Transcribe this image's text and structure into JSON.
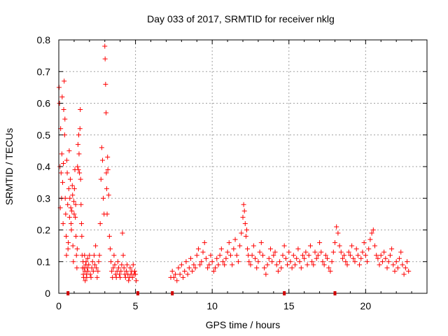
{
  "chart_data": {
    "type": "scatter",
    "title": "Day 033 of 2017, SRMTID for receiver nklg",
    "xlabel": "GPS time / hours",
    "ylabel": "SRMTID / TECUs",
    "xlim": [
      0,
      24
    ],
    "ylim": [
      0,
      0.8
    ],
    "xticks": [
      0,
      5,
      10,
      15,
      20
    ],
    "yticks": [
      0,
      0.1,
      0.2,
      0.3,
      0.4,
      0.5,
      0.6,
      0.7,
      0.8
    ],
    "xtick_labels": [
      "0",
      "5",
      "10",
      "15",
      "20"
    ],
    "ytick_labels": [
      "0",
      "0.1",
      "0.2",
      "0.3",
      "0.4",
      "0.5",
      "0.6",
      "0.7",
      "0.8"
    ],
    "grid": true,
    "marker": "+",
    "color": "#ff0000",
    "gap_markers_x": [
      0.6,
      5.15,
      7.4,
      14.7,
      18.0
    ],
    "series": [
      {
        "name": "SRMTID",
        "x": [
          0.02,
          0.05,
          0.08,
          0.1,
          0.12,
          0.15,
          0.18,
          0.2,
          0.22,
          0.25,
          0.28,
          0.3,
          0.32,
          0.35,
          0.38,
          0.4,
          0.42,
          0.45,
          0.48,
          0.5,
          0.52,
          0.55,
          0.58,
          0.6,
          0.62,
          0.65,
          0.68,
          0.7,
          0.72,
          0.75,
          0.78,
          0.8,
          0.82,
          0.85,
          0.88,
          0.9,
          0.92,
          0.95,
          0.98,
          1.0,
          1.02,
          1.05,
          1.08,
          1.1,
          1.12,
          1.15,
          1.18,
          1.2,
          1.22,
          1.25,
          1.28,
          1.3,
          1.32,
          1.35,
          1.38,
          1.4,
          1.42,
          1.45,
          1.48,
          1.5,
          1.52,
          1.55,
          1.58,
          1.6,
          1.62,
          1.65,
          1.68,
          1.7,
          1.72,
          1.75,
          1.78,
          1.8,
          1.82,
          1.85,
          1.88,
          1.9,
          1.95,
          2.0,
          2.05,
          2.1,
          2.15,
          2.2,
          2.25,
          2.3,
          2.35,
          2.4,
          2.45,
          2.5,
          2.55,
          2.6,
          2.65,
          2.7,
          2.75,
          2.8,
          2.85,
          2.9,
          2.95,
          3.0,
          3.02,
          3.05,
          3.08,
          3.1,
          3.12,
          3.15,
          3.18,
          3.2,
          3.25,
          3.3,
          3.35,
          3.4,
          3.45,
          3.5,
          3.55,
          3.6,
          3.65,
          3.7,
          3.75,
          3.8,
          3.85,
          3.9,
          3.95,
          4.0,
          4.05,
          4.1,
          4.15,
          4.2,
          4.25,
          4.3,
          4.35,
          4.4,
          4.45,
          4.5,
          4.55,
          4.6,
          4.65,
          4.7,
          4.75,
          4.8,
          4.85,
          4.9,
          4.95,
          5.0,
          5.05,
          7.3,
          7.4,
          7.5,
          7.6,
          7.7,
          7.8,
          7.9,
          8.0,
          8.1,
          8.2,
          8.3,
          8.4,
          8.5,
          8.6,
          8.7,
          8.8,
          8.9,
          9.0,
          9.1,
          9.2,
          9.3,
          9.4,
          9.5,
          9.6,
          9.7,
          9.8,
          9.9,
          10.0,
          10.1,
          10.2,
          10.3,
          10.4,
          10.5,
          10.6,
          10.7,
          10.8,
          10.9,
          11.0,
          11.1,
          11.2,
          11.3,
          11.4,
          11.5,
          11.6,
          11.7,
          11.8,
          11.9,
          12.0,
          12.05,
          12.1,
          12.15,
          12.2,
          12.25,
          12.3,
          12.35,
          12.4,
          12.5,
          12.6,
          12.7,
          12.8,
          12.9,
          13.0,
          13.1,
          13.2,
          13.3,
          13.4,
          13.5,
          13.6,
          13.7,
          13.8,
          13.9,
          14.0,
          14.1,
          14.2,
          14.3,
          14.4,
          14.5,
          14.6,
          14.7,
          14.8,
          14.9,
          15.0,
          15.1,
          15.2,
          15.3,
          15.4,
          15.5,
          15.6,
          15.7,
          15.8,
          15.9,
          16.0,
          16.1,
          16.2,
          16.3,
          16.4,
          16.5,
          16.6,
          16.7,
          16.8,
          16.9,
          17.0,
          17.1,
          17.2,
          17.3,
          17.4,
          17.5,
          17.6,
          17.7,
          17.8,
          17.9,
          18.0,
          18.1,
          18.2,
          18.3,
          18.4,
          18.5,
          18.6,
          18.7,
          18.8,
          18.9,
          19.0,
          19.1,
          19.2,
          19.3,
          19.4,
          19.5,
          19.6,
          19.7,
          19.8,
          19.9,
          20.0,
          20.1,
          20.2,
          20.3,
          20.4,
          20.5,
          20.6,
          20.7,
          20.8,
          20.9,
          21.0,
          21.1,
          21.2,
          21.3,
          21.4,
          21.5,
          21.6,
          21.7,
          21.8,
          21.9,
          22.0,
          22.1,
          22.2,
          22.3,
          22.4,
          22.5,
          22.6,
          22.7,
          22.8
        ],
        "y": [
          0.65,
          0.6,
          0.4,
          0.27,
          0.52,
          0.38,
          0.3,
          0.44,
          0.62,
          0.35,
          0.22,
          0.41,
          0.58,
          0.67,
          0.5,
          0.55,
          0.3,
          0.25,
          0.18,
          0.12,
          0.42,
          0.38,
          0.28,
          0.14,
          0.16,
          0.33,
          0.45,
          0.24,
          0.3,
          0.36,
          0.27,
          0.22,
          0.2,
          0.26,
          0.34,
          0.31,
          0.15,
          0.1,
          0.29,
          0.25,
          0.33,
          0.39,
          0.24,
          0.28,
          0.18,
          0.12,
          0.08,
          0.14,
          0.4,
          0.47,
          0.39,
          0.5,
          0.44,
          0.38,
          0.52,
          0.58,
          0.36,
          0.28,
          0.22,
          0.18,
          0.12,
          0.08,
          0.1,
          0.06,
          0.05,
          0.08,
          0.12,
          0.07,
          0.04,
          0.09,
          0.1,
          0.06,
          0.05,
          0.08,
          0.11,
          0.07,
          0.09,
          0.12,
          0.06,
          0.05,
          0.08,
          0.1,
          0.07,
          0.12,
          0.09,
          0.15,
          0.08,
          0.05,
          0.07,
          0.1,
          0.12,
          0.22,
          0.36,
          0.46,
          0.42,
          0.3,
          0.25,
          0.78,
          0.74,
          0.66,
          0.57,
          0.38,
          0.33,
          0.25,
          0.43,
          0.39,
          0.31,
          0.18,
          0.14,
          0.1,
          0.07,
          0.05,
          0.08,
          0.12,
          0.09,
          0.06,
          0.05,
          0.07,
          0.1,
          0.08,
          0.06,
          0.05,
          0.07,
          0.09,
          0.19,
          0.12,
          0.08,
          0.06,
          0.05,
          0.07,
          0.09,
          0.06,
          0.04,
          0.05,
          0.08,
          0.06,
          0.07,
          0.05,
          0.09,
          0.06,
          0.07,
          0.06,
          0.04,
          0.05,
          0.07,
          0.05,
          0.06,
          0.04,
          0.08,
          0.06,
          0.09,
          0.05,
          0.07,
          0.1,
          0.06,
          0.08,
          0.11,
          0.07,
          0.09,
          0.08,
          0.12,
          0.14,
          0.09,
          0.1,
          0.13,
          0.16,
          0.11,
          0.08,
          0.09,
          0.12,
          0.1,
          0.07,
          0.08,
          0.11,
          0.09,
          0.12,
          0.14,
          0.1,
          0.09,
          0.11,
          0.13,
          0.16,
          0.12,
          0.09,
          0.14,
          0.17,
          0.12,
          0.1,
          0.15,
          0.19,
          0.24,
          0.28,
          0.26,
          0.22,
          0.18,
          0.2,
          0.14,
          0.12,
          0.1,
          0.09,
          0.12,
          0.15,
          0.11,
          0.08,
          0.1,
          0.13,
          0.16,
          0.12,
          0.08,
          0.06,
          0.09,
          0.11,
          0.14,
          0.1,
          0.12,
          0.13,
          0.09,
          0.07,
          0.1,
          0.08,
          0.12,
          0.15,
          0.11,
          0.09,
          0.13,
          0.1,
          0.08,
          0.12,
          0.09,
          0.11,
          0.14,
          0.1,
          0.08,
          0.12,
          0.11,
          0.13,
          0.09,
          0.12,
          0.15,
          0.1,
          0.09,
          0.13,
          0.11,
          0.12,
          0.16,
          0.13,
          0.1,
          0.09,
          0.12,
          0.11,
          0.08,
          0.07,
          0.1,
          0.13,
          0.16,
          0.21,
          0.19,
          0.15,
          0.13,
          0.11,
          0.12,
          0.1,
          0.09,
          0.13,
          0.12,
          0.15,
          0.11,
          0.1,
          0.14,
          0.12,
          0.09,
          0.11,
          0.13,
          0.16,
          0.12,
          0.1,
          0.14,
          0.17,
          0.19,
          0.2,
          0.15,
          0.12,
          0.11,
          0.09,
          0.12,
          0.1,
          0.13,
          0.11,
          0.08,
          0.1,
          0.12,
          0.14,
          0.09,
          0.07,
          0.1,
          0.08,
          0.11,
          0.13,
          0.09,
          0.06,
          0.08,
          0.1,
          0.07
        ]
      }
    ]
  }
}
